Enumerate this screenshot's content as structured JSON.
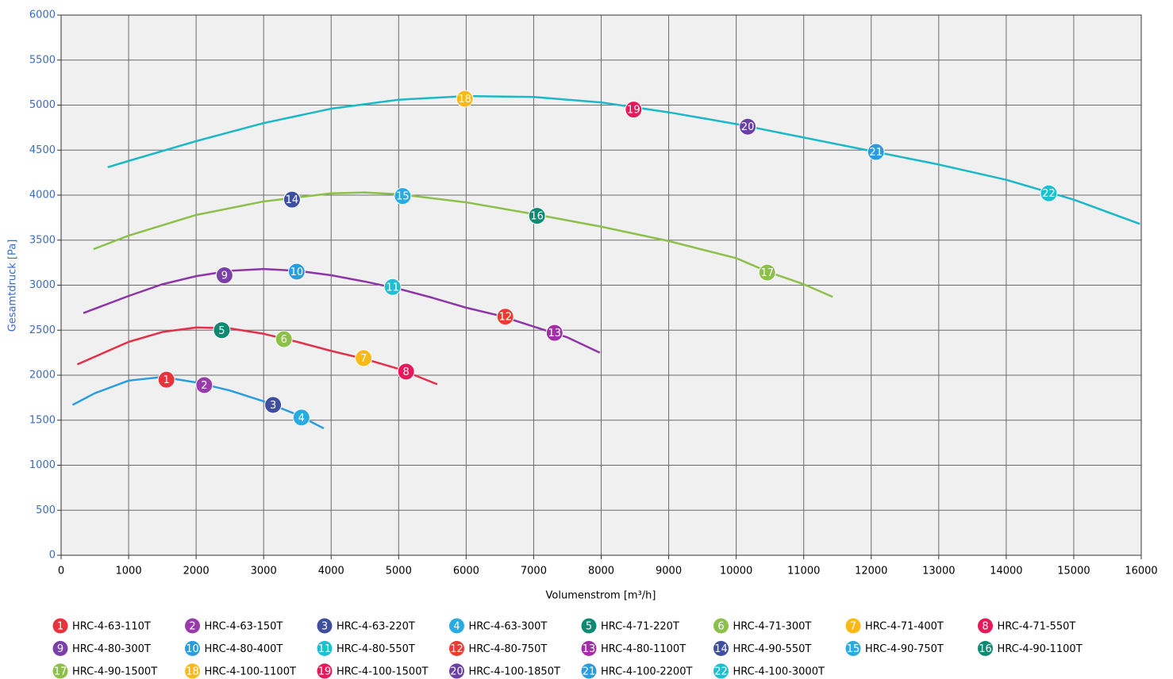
{
  "chart_data": {
    "type": "line",
    "xlabel": "Volumenstrom [m³/h]",
    "ylabel": "Gesamtdruck [Pa]",
    "xlim": [
      0,
      16000
    ],
    "ylim": [
      0,
      6000
    ],
    "xticks": [
      0,
      1000,
      2000,
      3000,
      4000,
      5000,
      6000,
      7000,
      8000,
      9000,
      10000,
      11000,
      12000,
      13000,
      14000,
      15000,
      16000
    ],
    "yticks": [
      0,
      500,
      1000,
      1500,
      2000,
      2500,
      3000,
      3500,
      4000,
      4500,
      5000,
      5500,
      6000
    ],
    "grid": true,
    "curves": [
      {
        "color": "#2a9de0",
        "x": [
          170,
          500,
          1000,
          1500,
          2000,
          2500,
          3000,
          3500,
          3890
        ],
        "values": [
          1670,
          1800,
          1940,
          1980,
          1920,
          1830,
          1710,
          1560,
          1410
        ]
      },
      {
        "color": "#e3304a",
        "x": [
          240,
          1000,
          1500,
          2000,
          2500,
          3000,
          3500,
          4000,
          4500,
          5000,
          5570
        ],
        "values": [
          2120,
          2370,
          2480,
          2530,
          2520,
          2460,
          2370,
          2270,
          2180,
          2070,
          1900
        ]
      },
      {
        "color": "#8e36a8",
        "x": [
          330,
          1000,
          1500,
          2000,
          2500,
          3000,
          3500,
          4000,
          4500,
          5000,
          5500,
          6000,
          6500,
          7000,
          7500,
          7980
        ],
        "values": [
          2690,
          2880,
          3010,
          3100,
          3160,
          3180,
          3160,
          3110,
          3040,
          2960,
          2860,
          2750,
          2660,
          2540,
          2420,
          2250
        ]
      },
      {
        "color": "#8cc04a",
        "x": [
          480,
          1000,
          2000,
          3000,
          4000,
          4500,
          5000,
          6000,
          7000,
          8000,
          9000,
          10000,
          10500,
          11000,
          11430
        ],
        "values": [
          3400,
          3550,
          3780,
          3930,
          4020,
          4030,
          4010,
          3920,
          3790,
          3650,
          3490,
          3300,
          3140,
          3010,
          2870
        ]
      },
      {
        "color": "#1bb8c8",
        "x": [
          690,
          1000,
          2000,
          3000,
          4000,
          5000,
          6000,
          7000,
          8000,
          9000,
          10000,
          11000,
          12000,
          13000,
          14000,
          15000,
          15980
        ],
        "values": [
          4310,
          4380,
          4600,
          4800,
          4960,
          5060,
          5100,
          5090,
          5030,
          4920,
          4790,
          4640,
          4490,
          4340,
          4170,
          3950,
          3680
        ]
      }
    ],
    "series": [
      {
        "number": "1",
        "name": "HRC-4-63-110T",
        "color": "#e8323c",
        "x": 1560,
        "y": 1950
      },
      {
        "number": "2",
        "name": "HRC-4-63-150T",
        "color": "#9b3aac",
        "x": 2120,
        "y": 1890
      },
      {
        "number": "3",
        "name": "HRC-4-63-220T",
        "color": "#3f4fa0",
        "x": 3140,
        "y": 1670
      },
      {
        "number": "4",
        "name": "HRC-4-63-300T",
        "color": "#29abe2",
        "x": 3560,
        "y": 1530
      },
      {
        "number": "5",
        "name": "HRC-4-71-220T",
        "color": "#0e8a72",
        "x": 2380,
        "y": 2500
      },
      {
        "number": "6",
        "name": "HRC-4-71-300T",
        "color": "#8cc04a",
        "x": 3300,
        "y": 2400
      },
      {
        "number": "7",
        "name": "HRC-4-71-400T",
        "color": "#fbb917",
        "x": 4480,
        "y": 2190
      },
      {
        "number": "8",
        "name": "HRC-4-71-550T",
        "color": "#e6195a",
        "x": 5110,
        "y": 2040
      },
      {
        "number": "9",
        "name": "HRC-4-80-300T",
        "color": "#7a3fa8",
        "x": 2420,
        "y": 3110
      },
      {
        "number": "10",
        "name": "HRC-4-80-400T",
        "color": "#2a9de0",
        "x": 3490,
        "y": 3150
      },
      {
        "number": "11",
        "name": "HRC-4-80-550T",
        "color": "#1cc0d0",
        "x": 4910,
        "y": 2980
      },
      {
        "number": "12",
        "name": "HRC-4-80-750T",
        "color": "#ee3a33",
        "x": 6580,
        "y": 2650
      },
      {
        "number": "13",
        "name": "HRC-4-80-1100T",
        "color": "#a22fa8",
        "x": 7310,
        "y": 2470
      },
      {
        "number": "14",
        "name": "HRC-4-90-550T",
        "color": "#3f4fa0",
        "x": 3420,
        "y": 3950
      },
      {
        "number": "15",
        "name": "HRC-4-90-750T",
        "color": "#29abe2",
        "x": 5060,
        "y": 3990
      },
      {
        "number": "16",
        "name": "HRC-4-90-1100T",
        "color": "#0e8a72",
        "x": 7050,
        "y": 3770
      },
      {
        "number": "17",
        "name": "HRC-4-90-1500T",
        "color": "#8cc04a",
        "x": 10460,
        "y": 3140
      },
      {
        "number": "18",
        "name": "HRC-4-100-1100T",
        "color": "#fbb917",
        "x": 5980,
        "y": 5070
      },
      {
        "number": "19",
        "name": "HRC-4-100-1500T",
        "color": "#e6195a",
        "x": 8480,
        "y": 4950
      },
      {
        "number": "20",
        "name": "HRC-4-100-1850T",
        "color": "#6a3fa8",
        "x": 10170,
        "y": 4760
      },
      {
        "number": "21",
        "name": "HRC-4-100-2200T",
        "color": "#2a9de0",
        "x": 12070,
        "y": 4480
      },
      {
        "number": "22",
        "name": "HRC-4-100-3000T",
        "color": "#1cc0d0",
        "x": 14630,
        "y": 4020
      }
    ]
  }
}
